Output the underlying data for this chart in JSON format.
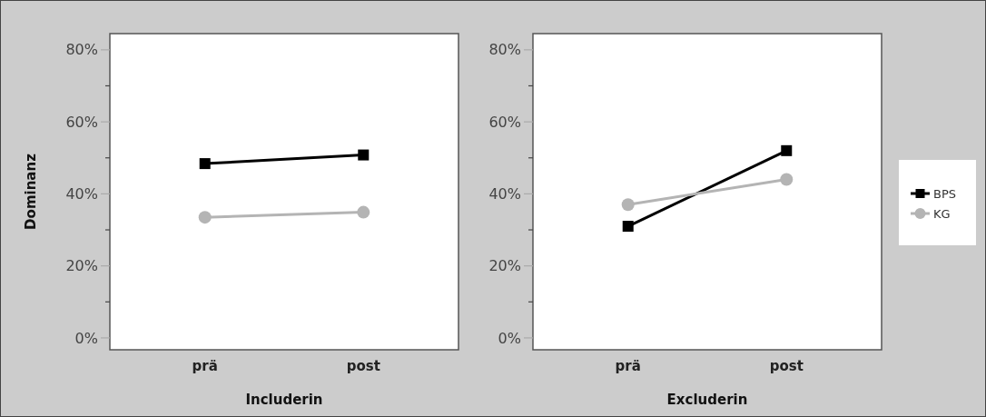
{
  "chart_data": [
    {
      "type": "line",
      "xlabel": "Includerin",
      "ylabel": "Dominanz",
      "categories": [
        "prä",
        "post"
      ],
      "series": [
        {
          "color": "#000000",
          "marker": "square",
          "values": [
            48.4,
            50.8
          ]
        },
        {
          "color": "#b4b4b4",
          "marker": "circle",
          "values": [
            33.5,
            34.9
          ]
        }
      ],
      "ylim": [
        -3.3,
        84.5
      ],
      "yticks": [
        {
          "value": 0,
          "label": "0%"
        },
        {
          "value": 10,
          "label": null
        },
        {
          "value": 20,
          "label": "20%"
        },
        {
          "value": 30,
          "label": null
        },
        {
          "value": 40,
          "label": "40%"
        },
        {
          "value": 50,
          "label": null
        },
        {
          "value": 60,
          "label": "60%"
        },
        {
          "value": 70,
          "label": null
        },
        {
          "value": 80,
          "label": "80%"
        }
      ],
      "grid": false,
      "legend": false,
      "line_style": "solid"
    },
    {
      "type": "line",
      "xlabel": "Excluderin",
      "categories": [
        "prä",
        "post"
      ],
      "series": [
        {
          "name": "BPS",
          "color": "#000000",
          "marker": "square",
          "values": [
            31.0,
            52.0
          ]
        },
        {
          "name": "KG",
          "color": "#b4b4b4",
          "marker": "circle",
          "values": [
            37.0,
            44.0
          ]
        }
      ],
      "ylim": [
        -3.3,
        84.5
      ],
      "yticks": [
        {
          "value": 0,
          "label": "0%"
        },
        {
          "value": 10,
          "label": null
        },
        {
          "value": 20,
          "label": "20%"
        },
        {
          "value": 30,
          "label": null
        },
        {
          "value": 40,
          "label": "40%"
        },
        {
          "value": 50,
          "label": null
        },
        {
          "value": 60,
          "label": "60%"
        },
        {
          "value": 70,
          "label": null
        },
        {
          "value": 80,
          "label": "80%"
        }
      ],
      "grid": false,
      "legend": "right",
      "line_style": "solid"
    }
  ]
}
